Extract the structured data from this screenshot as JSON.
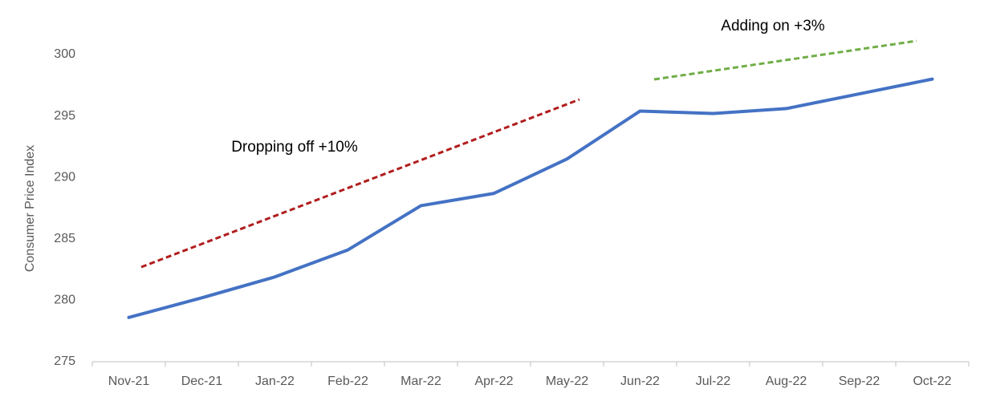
{
  "chart_data": {
    "type": "line",
    "y_label": "Consumer Price Index",
    "categories": [
      "Nov-21",
      "Dec-21",
      "Jan-22",
      "Feb-22",
      "Mar-22",
      "Apr-22",
      "May-22",
      "Jun-22",
      "Jul-22",
      "Aug-22",
      "Sep-22",
      "Oct-22"
    ],
    "series": [
      {
        "color": "#4472c4",
        "values": [
          278.6,
          280.2,
          281.9,
          284.1,
          287.7,
          288.7,
          291.5,
          295.4,
          295.2,
          295.6,
          296.8,
          298.0
        ]
      }
    ],
    "ylim": [
      275,
      300
    ],
    "yticks": [
      275,
      280,
      285,
      290,
      295,
      300
    ],
    "grid": false,
    "annotations": [
      "Dropping off +10%",
      "Adding on +3%"
    ]
  }
}
